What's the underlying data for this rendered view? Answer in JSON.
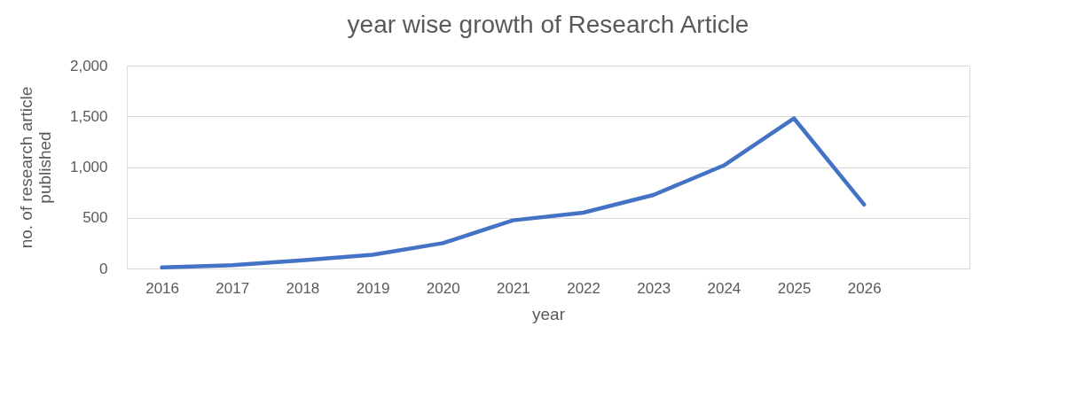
{
  "chart_data": {
    "type": "line",
    "title": "year wise growth of Research Article",
    "xlabel": "year",
    "ylabel": "no. of research article published",
    "categories": [
      "2016",
      "2017",
      "2018",
      "2019",
      "2020",
      "2021",
      "2022",
      "2023",
      "2024",
      "2025",
      "2026",
      null
    ],
    "series": [
      {
        "color": "#4472c4",
        "values": [
          10,
          33,
          80,
          135,
          250,
          475,
          550,
          725,
          1015,
          1480,
          630,
          null
        ]
      }
    ],
    "ylim": [
      0,
      2000
    ],
    "yticks": [
      0,
      500,
      {
        "value": 1000,
        "label": "1,000"
      },
      {
        "value": 1500,
        "label": "1,500"
      },
      {
        "value": 2000,
        "label": "2,000"
      }
    ],
    "grid": "y",
    "marker": "none",
    "line_style": "solid"
  }
}
